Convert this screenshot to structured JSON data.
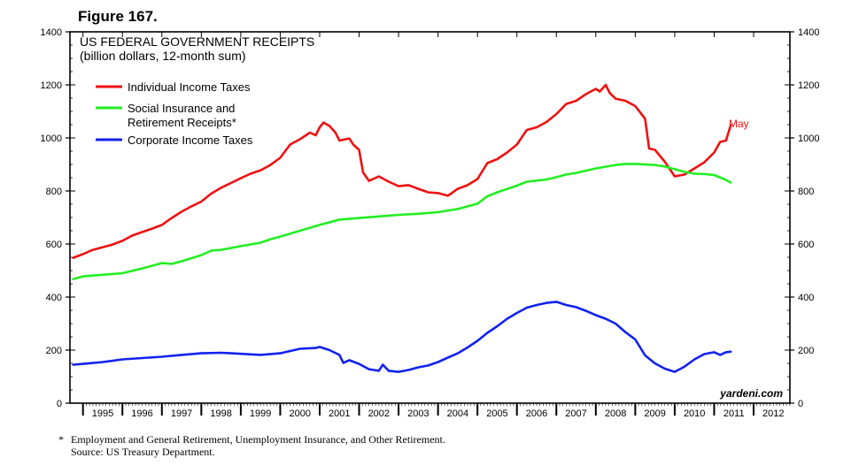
{
  "figure_label": "Figure 167.",
  "chart_data": {
    "type": "line",
    "title": "US FEDERAL GOVERNMENT RECEIPTS",
    "subtitle": "(billion dollars, 12-month sum)",
    "xlabel": "",
    "ylabel": "",
    "xlim": [
      1994.67,
      2012.92
    ],
    "ylim": [
      0,
      1400
    ],
    "x_tick_labels": [
      "1995",
      "1996",
      "1997",
      "1998",
      "1999",
      "2000",
      "2001",
      "2002",
      "2003",
      "2004",
      "2005",
      "2006",
      "2007",
      "2008",
      "2009",
      "2010",
      "2011",
      "2012"
    ],
    "y_ticks": [
      0,
      200,
      400,
      600,
      800,
      1000,
      1200,
      1400
    ],
    "y_tick_labels": [
      "0",
      "200",
      "400",
      "600",
      "800",
      "1000",
      "1200",
      "1400"
    ],
    "grid": false,
    "legend_position": "top-left",
    "watermark": "yardeni.com",
    "end_annotation": "May",
    "series": [
      {
        "name": "Individual Income Taxes",
        "color": "#ee1111",
        "points": [
          [
            1994.75,
            548
          ],
          [
            1995.0,
            562
          ],
          [
            1995.25,
            578
          ],
          [
            1995.5,
            588
          ],
          [
            1995.75,
            598
          ],
          [
            1996.0,
            612
          ],
          [
            1996.25,
            632
          ],
          [
            1996.5,
            645
          ],
          [
            1996.75,
            658
          ],
          [
            1997.0,
            672
          ],
          [
            1997.25,
            698
          ],
          [
            1997.5,
            722
          ],
          [
            1997.75,
            742
          ],
          [
            1998.0,
            760
          ],
          [
            1998.25,
            790
          ],
          [
            1998.5,
            812
          ],
          [
            1998.75,
            830
          ],
          [
            1999.0,
            848
          ],
          [
            1999.25,
            865
          ],
          [
            1999.5,
            878
          ],
          [
            1999.75,
            898
          ],
          [
            2000.0,
            925
          ],
          [
            2000.25,
            975
          ],
          [
            2000.5,
            995
          ],
          [
            2000.75,
            1020
          ],
          [
            2000.9,
            1010
          ],
          [
            2001.0,
            1040
          ],
          [
            2001.1,
            1058
          ],
          [
            2001.25,
            1045
          ],
          [
            2001.4,
            1020
          ],
          [
            2001.5,
            990
          ],
          [
            2001.75,
            998
          ],
          [
            2001.85,
            975
          ],
          [
            2002.0,
            955
          ],
          [
            2002.1,
            870
          ],
          [
            2002.25,
            838
          ],
          [
            2002.5,
            855
          ],
          [
            2002.75,
            835
          ],
          [
            2003.0,
            818
          ],
          [
            2003.25,
            822
          ],
          [
            2003.5,
            808
          ],
          [
            2003.75,
            795
          ],
          [
            2004.0,
            792
          ],
          [
            2004.25,
            782
          ],
          [
            2004.5,
            808
          ],
          [
            2004.75,
            822
          ],
          [
            2005.0,
            845
          ],
          [
            2005.25,
            905
          ],
          [
            2005.5,
            920
          ],
          [
            2005.75,
            945
          ],
          [
            2006.0,
            975
          ],
          [
            2006.25,
            1030
          ],
          [
            2006.5,
            1040
          ],
          [
            2006.75,
            1060
          ],
          [
            2007.0,
            1090
          ],
          [
            2007.25,
            1128
          ],
          [
            2007.5,
            1140
          ],
          [
            2007.75,
            1165
          ],
          [
            2008.0,
            1185
          ],
          [
            2008.1,
            1175
          ],
          [
            2008.25,
            1200
          ],
          [
            2008.35,
            1170
          ],
          [
            2008.5,
            1148
          ],
          [
            2008.75,
            1140
          ],
          [
            2009.0,
            1120
          ],
          [
            2009.25,
            1072
          ],
          [
            2009.35,
            960
          ],
          [
            2009.5,
            955
          ],
          [
            2009.75,
            910
          ],
          [
            2010.0,
            855
          ],
          [
            2010.25,
            862
          ],
          [
            2010.5,
            885
          ],
          [
            2010.75,
            908
          ],
          [
            2011.0,
            945
          ],
          [
            2011.15,
            985
          ],
          [
            2011.3,
            990
          ],
          [
            2011.42,
            1048
          ]
        ]
      },
      {
        "name": "Social Insurance and Retirement Receipts*",
        "color": "#22ee22",
        "points": [
          [
            1994.75,
            468
          ],
          [
            1995.0,
            478
          ],
          [
            1995.5,
            484
          ],
          [
            1996.0,
            490
          ],
          [
            1996.5,
            508
          ],
          [
            1997.0,
            528
          ],
          [
            1997.25,
            525
          ],
          [
            1997.5,
            535
          ],
          [
            1998.0,
            558
          ],
          [
            1998.25,
            575
          ],
          [
            1998.5,
            578
          ],
          [
            1999.0,
            592
          ],
          [
            1999.5,
            605
          ],
          [
            1999.75,
            618
          ],
          [
            2000.0,
            628
          ],
          [
            2000.5,
            650
          ],
          [
            2001.0,
            672
          ],
          [
            2001.5,
            692
          ],
          [
            2002.0,
            698
          ],
          [
            2002.5,
            704
          ],
          [
            2003.0,
            710
          ],
          [
            2003.5,
            714
          ],
          [
            2004.0,
            720
          ],
          [
            2004.5,
            732
          ],
          [
            2005.0,
            752
          ],
          [
            2005.25,
            780
          ],
          [
            2005.5,
            795
          ],
          [
            2006.0,
            820
          ],
          [
            2006.25,
            835
          ],
          [
            2006.75,
            843
          ],
          [
            2007.0,
            852
          ],
          [
            2007.25,
            862
          ],
          [
            2007.5,
            868
          ],
          [
            2008.0,
            885
          ],
          [
            2008.5,
            898
          ],
          [
            2008.75,
            902
          ],
          [
            2009.0,
            902
          ],
          [
            2009.5,
            898
          ],
          [
            2009.75,
            892
          ],
          [
            2010.0,
            882
          ],
          [
            2010.25,
            872
          ],
          [
            2010.5,
            865
          ],
          [
            2010.75,
            864
          ],
          [
            2011.0,
            860
          ],
          [
            2011.25,
            845
          ],
          [
            2011.42,
            832
          ]
        ]
      },
      {
        "name": "Corporate Income Taxes",
        "color": "#1122ee",
        "points": [
          [
            1994.75,
            145
          ],
          [
            1995.0,
            148
          ],
          [
            1995.5,
            155
          ],
          [
            1996.0,
            165
          ],
          [
            1996.5,
            170
          ],
          [
            1997.0,
            175
          ],
          [
            1997.5,
            182
          ],
          [
            1998.0,
            188
          ],
          [
            1998.5,
            190
          ],
          [
            1999.0,
            186
          ],
          [
            1999.5,
            182
          ],
          [
            2000.0,
            188
          ],
          [
            2000.5,
            205
          ],
          [
            2000.9,
            208
          ],
          [
            2001.0,
            212
          ],
          [
            2001.25,
            200
          ],
          [
            2001.5,
            182
          ],
          [
            2001.6,
            152
          ],
          [
            2001.75,
            162
          ],
          [
            2002.0,
            148
          ],
          [
            2002.25,
            128
          ],
          [
            2002.5,
            122
          ],
          [
            2002.6,
            145
          ],
          [
            2002.75,
            122
          ],
          [
            2003.0,
            118
          ],
          [
            2003.25,
            125
          ],
          [
            2003.5,
            135
          ],
          [
            2003.75,
            142
          ],
          [
            2004.0,
            155
          ],
          [
            2004.5,
            188
          ],
          [
            2004.75,
            210
          ],
          [
            2005.0,
            235
          ],
          [
            2005.25,
            265
          ],
          [
            2005.5,
            290
          ],
          [
            2005.75,
            318
          ],
          [
            2006.0,
            340
          ],
          [
            2006.25,
            360
          ],
          [
            2006.5,
            370
          ],
          [
            2006.75,
            378
          ],
          [
            2007.0,
            382
          ],
          [
            2007.25,
            370
          ],
          [
            2007.5,
            362
          ],
          [
            2007.75,
            348
          ],
          [
            2008.0,
            332
          ],
          [
            2008.25,
            318
          ],
          [
            2008.5,
            300
          ],
          [
            2008.75,
            268
          ],
          [
            2009.0,
            240
          ],
          [
            2009.25,
            180
          ],
          [
            2009.5,
            150
          ],
          [
            2009.75,
            130
          ],
          [
            2010.0,
            118
          ],
          [
            2010.25,
            138
          ],
          [
            2010.5,
            165
          ],
          [
            2010.75,
            185
          ],
          [
            2011.0,
            192
          ],
          [
            2011.15,
            182
          ],
          [
            2011.3,
            192
          ],
          [
            2011.42,
            194
          ]
        ]
      }
    ]
  },
  "legend": {
    "items": [
      {
        "label_lines": [
          "Individual Income Taxes"
        ],
        "color": "#ee1111"
      },
      {
        "label_lines": [
          "Social Insurance and",
          "Retirement Receipts*"
        ],
        "color": "#22ee22"
      },
      {
        "label_lines": [
          "Corporate Income Taxes"
        ],
        "color": "#1122ee"
      }
    ]
  },
  "footnote": {
    "mark": "*",
    "line1": "Employment and General Retirement, Unemployment Insurance, and Other Retirement.",
    "line2": "Source: US Treasury Department."
  }
}
